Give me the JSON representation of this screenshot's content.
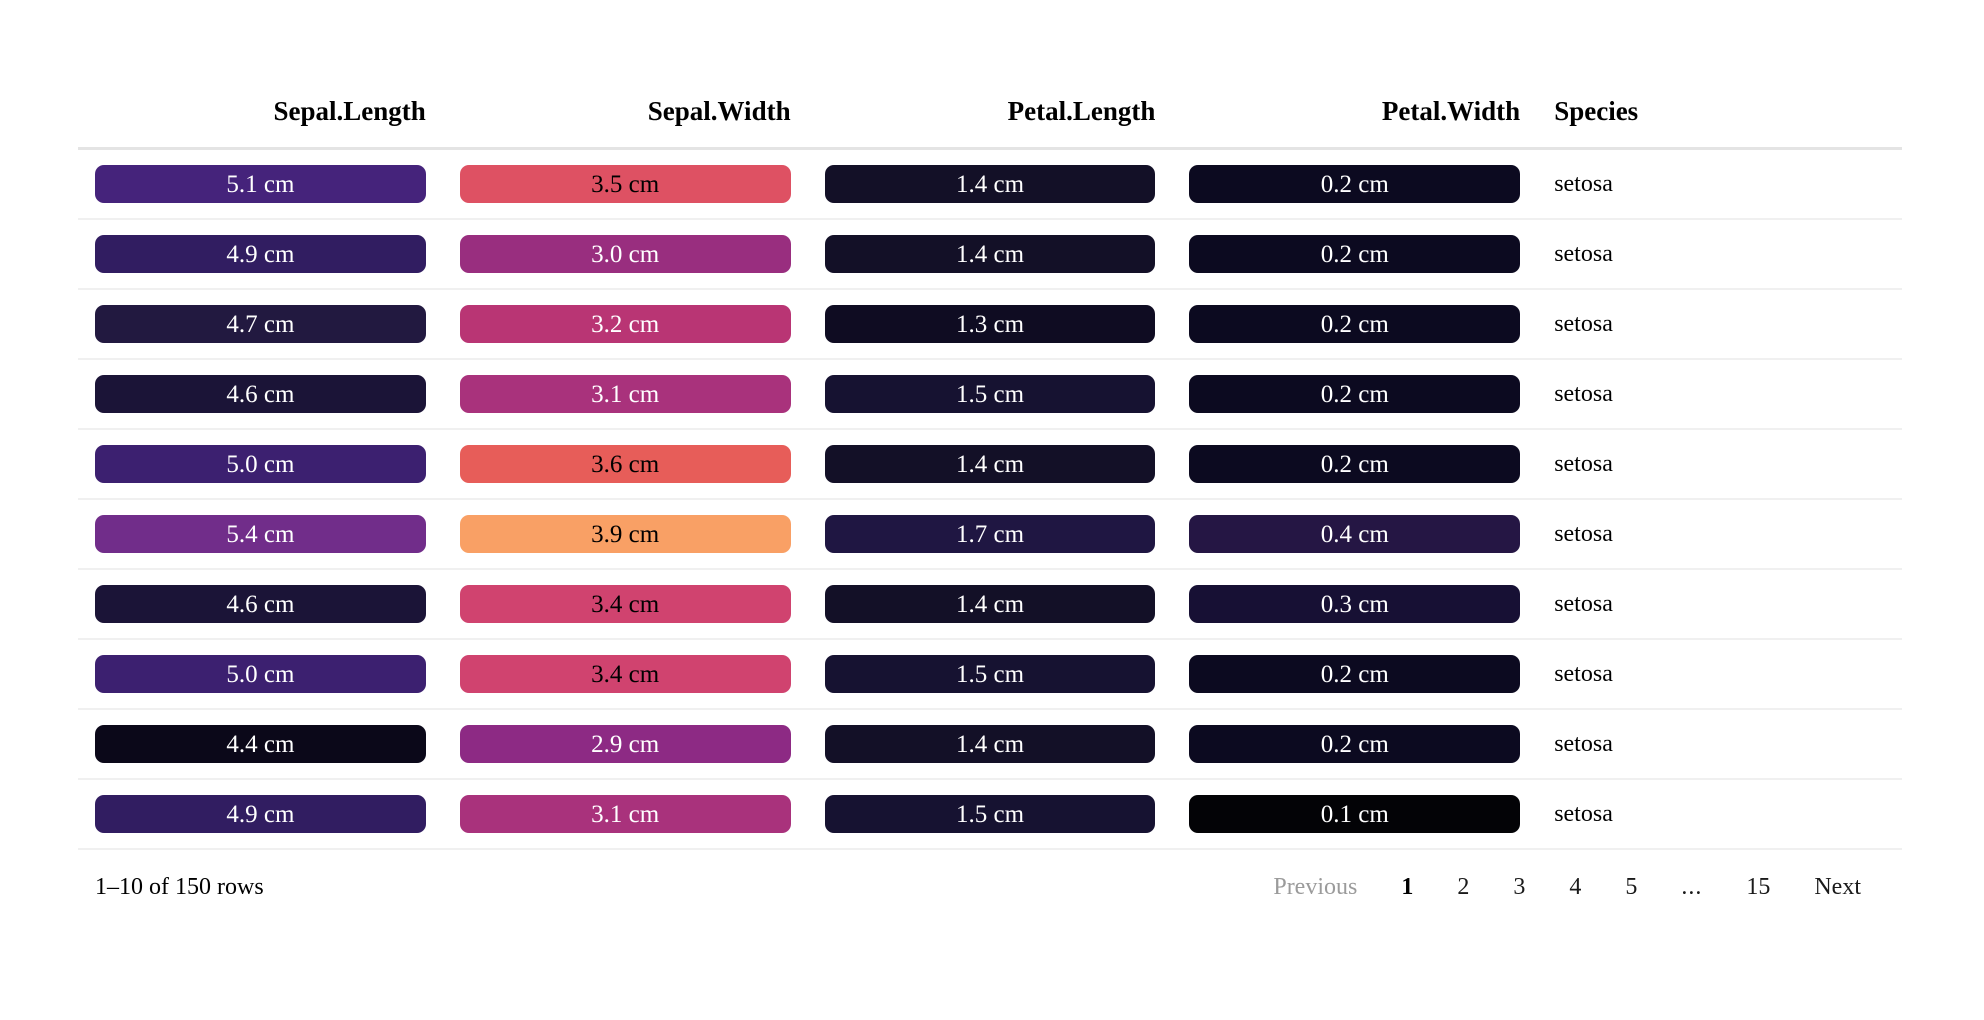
{
  "table": {
    "columns": [
      {
        "label": "Sepal.Length",
        "align": "right"
      },
      {
        "label": "Sepal.Width",
        "align": "right"
      },
      {
        "label": "Petal.Length",
        "align": "right"
      },
      {
        "label": "Petal.Width",
        "align": "right"
      },
      {
        "label": "Species",
        "align": "left"
      }
    ],
    "unit": "cm",
    "rows": [
      {
        "cells": [
          {
            "col": "sepal-length",
            "text": "5.1 cm",
            "bg": "#45237b",
            "fg": "#ffffff"
          },
          {
            "col": "sepal-width",
            "text": "3.5 cm",
            "bg": "#de5163",
            "fg": "#000000"
          },
          {
            "col": "petal-length",
            "text": "1.4 cm",
            "bg": "#131027",
            "fg": "#ffffff"
          },
          {
            "col": "petal-width",
            "text": "0.2 cm",
            "bg": "#0c0a20",
            "fg": "#ffffff"
          }
        ],
        "species": "setosa"
      },
      {
        "cells": [
          {
            "col": "sepal-length",
            "text": "4.9 cm",
            "bg": "#311d61",
            "fg": "#ffffff"
          },
          {
            "col": "sepal-width",
            "text": "3.0 cm",
            "bg": "#992e7f",
            "fg": "#ffffff"
          },
          {
            "col": "petal-length",
            "text": "1.4 cm",
            "bg": "#131027",
            "fg": "#ffffff"
          },
          {
            "col": "petal-width",
            "text": "0.2 cm",
            "bg": "#0c0a20",
            "fg": "#ffffff"
          }
        ],
        "species": "setosa"
      },
      {
        "cells": [
          {
            "col": "sepal-length",
            "text": "4.7 cm",
            "bg": "#221940",
            "fg": "#ffffff"
          },
          {
            "col": "sepal-width",
            "text": "3.2 cm",
            "bg": "#b93574",
            "fg": "#ffffff"
          },
          {
            "col": "petal-length",
            "text": "1.3 cm",
            "bg": "#0f0c22",
            "fg": "#ffffff"
          },
          {
            "col": "petal-width",
            "text": "0.2 cm",
            "bg": "#0c0a20",
            "fg": "#ffffff"
          }
        ],
        "species": "setosa"
      },
      {
        "cells": [
          {
            "col": "sepal-length",
            "text": "4.6 cm",
            "bg": "#1b1437",
            "fg": "#ffffff"
          },
          {
            "col": "sepal-width",
            "text": "3.1 cm",
            "bg": "#a9327c",
            "fg": "#ffffff"
          },
          {
            "col": "petal-length",
            "text": "1.5 cm",
            "bg": "#161231",
            "fg": "#ffffff"
          },
          {
            "col": "petal-width",
            "text": "0.2 cm",
            "bg": "#0c0a20",
            "fg": "#ffffff"
          }
        ],
        "species": "setosa"
      },
      {
        "cells": [
          {
            "col": "sepal-length",
            "text": "5.0 cm",
            "bg": "#3c2070",
            "fg": "#ffffff"
          },
          {
            "col": "sepal-width",
            "text": "3.6 cm",
            "bg": "#e75d59",
            "fg": "#000000"
          },
          {
            "col": "petal-length",
            "text": "1.4 cm",
            "bg": "#131027",
            "fg": "#ffffff"
          },
          {
            "col": "petal-width",
            "text": "0.2 cm",
            "bg": "#0c0a20",
            "fg": "#ffffff"
          }
        ],
        "species": "setosa"
      },
      {
        "cells": [
          {
            "col": "sepal-length",
            "text": "5.4 cm",
            "bg": "#712d8a",
            "fg": "#ffffff"
          },
          {
            "col": "sepal-width",
            "text": "3.9 cm",
            "bg": "#f9a065",
            "fg": "#000000"
          },
          {
            "col": "petal-length",
            "text": "1.7 cm",
            "bg": "#1f1642",
            "fg": "#ffffff"
          },
          {
            "col": "petal-width",
            "text": "0.4 cm",
            "bg": "#251644",
            "fg": "#ffffff"
          }
        ],
        "species": "setosa"
      },
      {
        "cells": [
          {
            "col": "sepal-length",
            "text": "4.6 cm",
            "bg": "#1b1437",
            "fg": "#ffffff"
          },
          {
            "col": "sepal-width",
            "text": "3.4 cm",
            "bg": "#d0436f",
            "fg": "#000000"
          },
          {
            "col": "petal-length",
            "text": "1.4 cm",
            "bg": "#131027",
            "fg": "#ffffff"
          },
          {
            "col": "petal-width",
            "text": "0.3 cm",
            "bg": "#171034",
            "fg": "#ffffff"
          }
        ],
        "species": "setosa"
      },
      {
        "cells": [
          {
            "col": "sepal-length",
            "text": "5.0 cm",
            "bg": "#3c2070",
            "fg": "#ffffff"
          },
          {
            "col": "sepal-width",
            "text": "3.4 cm",
            "bg": "#d0436f",
            "fg": "#000000"
          },
          {
            "col": "petal-length",
            "text": "1.5 cm",
            "bg": "#161231",
            "fg": "#ffffff"
          },
          {
            "col": "petal-width",
            "text": "0.2 cm",
            "bg": "#0c0a20",
            "fg": "#ffffff"
          }
        ],
        "species": "setosa"
      },
      {
        "cells": [
          {
            "col": "sepal-length",
            "text": "4.4 cm",
            "bg": "#0b0819",
            "fg": "#ffffff"
          },
          {
            "col": "sepal-width",
            "text": "2.9 cm",
            "bg": "#8d2a84",
            "fg": "#ffffff"
          },
          {
            "col": "petal-length",
            "text": "1.4 cm",
            "bg": "#131027",
            "fg": "#ffffff"
          },
          {
            "col": "petal-width",
            "text": "0.2 cm",
            "bg": "#0c0a20",
            "fg": "#ffffff"
          }
        ],
        "species": "setosa"
      },
      {
        "cells": [
          {
            "col": "sepal-length",
            "text": "4.9 cm",
            "bg": "#311d61",
            "fg": "#ffffff"
          },
          {
            "col": "sepal-width",
            "text": "3.1 cm",
            "bg": "#a9327c",
            "fg": "#ffffff"
          },
          {
            "col": "petal-length",
            "text": "1.5 cm",
            "bg": "#161231",
            "fg": "#ffffff"
          },
          {
            "col": "petal-width",
            "text": "0.1 cm",
            "bg": "#030306",
            "fg": "#ffffff"
          }
        ],
        "species": "setosa"
      }
    ]
  },
  "footer": {
    "page_info": "1–10 of 150 rows"
  },
  "pagination": {
    "previous_label": "Previous",
    "next_label": "Next",
    "pages": [
      "1",
      "2",
      "3",
      "4",
      "5",
      "...",
      "15"
    ],
    "current_page": "1"
  },
  "colors": {
    "header_rule": "#e4e4e4",
    "row_rule": "#f0f0f0",
    "disabled_text": "#9b9b9b"
  }
}
